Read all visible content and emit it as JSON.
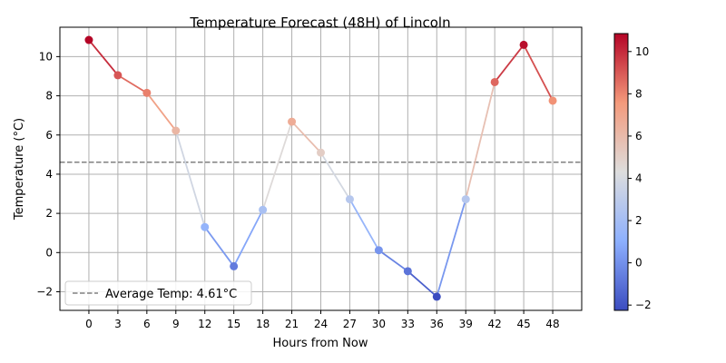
{
  "chart_data": {
    "type": "line",
    "title": "Temperature Forecast (48H) of Lincoln",
    "xlabel": "Hours from Now",
    "ylabel": "Temperature (°C)",
    "x": [
      0,
      3,
      6,
      9,
      12,
      15,
      18,
      21,
      24,
      27,
      30,
      33,
      36,
      39,
      42,
      45,
      48
    ],
    "values": [
      10.85,
      9.05,
      8.15,
      6.22,
      1.3,
      -0.7,
      2.18,
      6.68,
      5.1,
      2.72,
      0.12,
      -0.95,
      -2.25,
      2.72,
      8.7,
      10.6,
      7.75
    ],
    "xlim": [
      -3,
      51
    ],
    "ylim": [
      -2.95,
      11.5
    ],
    "xticks": [
      0,
      3,
      6,
      9,
      12,
      15,
      18,
      21,
      24,
      27,
      30,
      33,
      36,
      39,
      42,
      45,
      48
    ],
    "yticks": [
      -2,
      0,
      2,
      4,
      6,
      8,
      10
    ],
    "grid": true,
    "colormap": "coolwarm",
    "colorbar": {
      "min": -2.25,
      "max": 10.85,
      "ticks": [
        -2,
        0,
        2,
        4,
        6,
        8,
        10
      ]
    },
    "average": {
      "value": 4.61,
      "label": "Average Temp: 4.61°C",
      "color": "#808080",
      "style": "dashed"
    },
    "legend_position": "lower left",
    "grid_color": "#b0b0b0"
  }
}
